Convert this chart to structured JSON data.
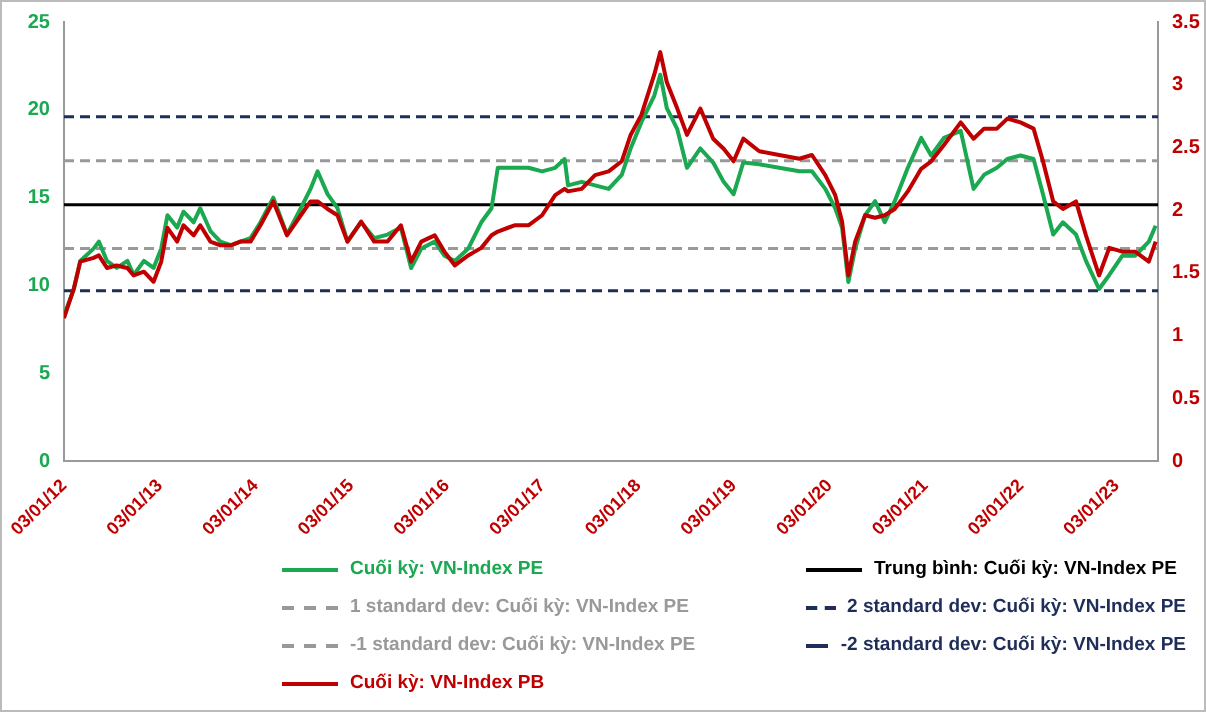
{
  "chart_data": {
    "type": "line",
    "legend": "bottom",
    "grid": false,
    "marker": "none",
    "xlim": [
      "2012-01-03",
      "2023-06-10"
    ],
    "xticks": [
      {
        "value": "2012-01-03",
        "label": "03/01/12"
      },
      {
        "value": "2013-01-03",
        "label": "03/01/13"
      },
      {
        "value": "2014-01-03",
        "label": "03/01/14"
      },
      {
        "value": "2015-01-03",
        "label": "03/01/15"
      },
      {
        "value": "2016-01-03",
        "label": "03/01/16"
      },
      {
        "value": "2017-01-03",
        "label": "03/01/17"
      },
      {
        "value": "2018-01-03",
        "label": "03/01/18"
      },
      {
        "value": "2019-01-03",
        "label": "03/01/19"
      },
      {
        "value": "2020-01-03",
        "label": "03/01/20"
      },
      {
        "value": "2021-01-03",
        "label": "03/01/21"
      },
      {
        "value": "2022-01-03",
        "label": "03/01/22"
      },
      {
        "value": "2023-01-03",
        "label": "03/01/23"
      }
    ],
    "ylim": [
      0,
      25
    ],
    "yticks": [
      0,
      5,
      10,
      15,
      20,
      25
    ],
    "y2lim": [
      0,
      3.5
    ],
    "y2ticks": [
      0,
      0.5,
      1,
      1.5,
      2,
      2.5,
      3,
      3.5
    ],
    "x": [
      "2012-01-03",
      "2012-02-10",
      "2012-03-05",
      "2012-04-25",
      "2012-05-15",
      "2012-06-15",
      "2012-07-22",
      "2012-09-01",
      "2012-09-25",
      "2012-11-03",
      "2012-12-10",
      "2013-01-08",
      "2013-02-01",
      "2013-03-10",
      "2013-04-03",
      "2013-05-12",
      "2013-06-06",
      "2013-07-15",
      "2013-08-22",
      "2013-10-01",
      "2013-11-06",
      "2013-12-15",
      "2014-01-22",
      "2014-03-12",
      "2014-05-03",
      "2014-06-25",
      "2014-08-01",
      "2014-08-28",
      "2014-10-05",
      "2014-11-12",
      "2014-12-20",
      "2015-02-10",
      "2015-04-01",
      "2015-05-22",
      "2015-07-12",
      "2015-08-20",
      "2015-09-28",
      "2015-11-18",
      "2015-12-25",
      "2016-02-03",
      "2016-03-25",
      "2016-05-14",
      "2016-06-22",
      "2016-07-16",
      "2016-09-18",
      "2016-11-10",
      "2017-01-01",
      "2017-02-20",
      "2017-03-28",
      "2017-04-10",
      "2017-06-01",
      "2017-07-22",
      "2017-09-12",
      "2017-11-01",
      "2017-12-05",
      "2018-01-15",
      "2018-03-05",
      "2018-03-28",
      "2018-04-22",
      "2018-06-01",
      "2018-07-08",
      "2018-08-28",
      "2018-10-16",
      "2018-11-25",
      "2019-01-02",
      "2019-02-08",
      "2019-04-10",
      "2019-06-25",
      "2019-09-10",
      "2019-10-28",
      "2019-12-18",
      "2020-01-25",
      "2020-02-20",
      "2020-03-15",
      "2020-04-10",
      "2020-05-18",
      "2020-06-25",
      "2020-08-01",
      "2020-09-08",
      "2020-10-28",
      "2020-12-18",
      "2021-01-25",
      "2021-03-15",
      "2021-05-18",
      "2021-07-06",
      "2021-08-15",
      "2021-10-03",
      "2021-11-12",
      "2022-01-01",
      "2022-02-20",
      "2022-03-28",
      "2022-05-06",
      "2022-06-12",
      "2022-08-01",
      "2022-09-08",
      "2022-10-28",
      "2022-12-06",
      "2023-01-25",
      "2023-03-15",
      "2023-05-06",
      "2023-06-01"
    ],
    "series": [
      {
        "name": "Cuối kỳ: VN-Index PE",
        "color": "#1aa850",
        "values": [
          8.3,
          9.8,
          11.4,
          12.1,
          12.5,
          11.4,
          11.0,
          11.4,
          10.6,
          11.4,
          11.0,
          12.1,
          14.0,
          13.3,
          14.2,
          13.6,
          14.4,
          13.1,
          12.5,
          12.3,
          12.5,
          12.7,
          13.6,
          15.0,
          12.9,
          14.4,
          15.5,
          16.5,
          15.2,
          14.4,
          12.5,
          13.6,
          12.7,
          12.9,
          13.3,
          11.0,
          12.1,
          12.5,
          11.7,
          11.4,
          12.1,
          13.6,
          14.4,
          16.7,
          16.7,
          16.7,
          16.5,
          16.7,
          17.2,
          15.7,
          15.9,
          15.7,
          15.5,
          16.3,
          17.8,
          19.3,
          20.8,
          22.0,
          20.1,
          18.9,
          16.7,
          17.8,
          17.0,
          15.9,
          15.2,
          17.0,
          16.9,
          16.7,
          16.5,
          16.5,
          15.5,
          14.4,
          13.3,
          10.2,
          12.1,
          14.0,
          14.8,
          13.6,
          14.8,
          16.7,
          18.4,
          17.4,
          18.4,
          18.8,
          15.5,
          16.3,
          16.7,
          17.2,
          17.4,
          17.2,
          15.2,
          12.9,
          13.6,
          12.9,
          11.4,
          9.8,
          10.6,
          11.7,
          11.7,
          12.5,
          13.4
        ]
      },
      {
        "name": "1 standard dev: Cuối kỳ: VN-Index PE",
        "color": "#999999",
        "line_style": "dashed",
        "x": [
          "2012-01-03",
          "2023-06-10"
        ],
        "values": [
          17.1,
          17.1
        ]
      },
      {
        "name": "-1 standard dev: Cuối kỳ: VN-Index PE",
        "color": "#999999",
        "line_style": "dashed",
        "x": [
          "2012-01-03",
          "2023-06-10"
        ],
        "values": [
          12.1,
          12.1
        ]
      },
      {
        "name": "Cuối kỳ: VN-Index PB",
        "color": "#c00000",
        "axis": "y2",
        "values": [
          1.14,
          1.38,
          1.59,
          1.62,
          1.64,
          1.54,
          1.56,
          1.54,
          1.48,
          1.51,
          1.43,
          1.59,
          1.86,
          1.75,
          1.88,
          1.8,
          1.88,
          1.75,
          1.72,
          1.72,
          1.75,
          1.75,
          1.88,
          2.07,
          1.8,
          1.96,
          2.07,
          2.07,
          2.01,
          1.96,
          1.75,
          1.91,
          1.75,
          1.75,
          1.88,
          1.59,
          1.75,
          1.8,
          1.67,
          1.56,
          1.64,
          1.7,
          1.8,
          1.83,
          1.88,
          1.88,
          1.96,
          2.12,
          2.17,
          2.15,
          2.17,
          2.28,
          2.31,
          2.39,
          2.6,
          2.76,
          3.08,
          3.26,
          3.02,
          2.81,
          2.6,
          2.81,
          2.57,
          2.49,
          2.39,
          2.57,
          2.47,
          2.44,
          2.41,
          2.44,
          2.28,
          2.12,
          1.91,
          1.48,
          1.75,
          1.96,
          1.94,
          1.96,
          2.01,
          2.15,
          2.33,
          2.39,
          2.52,
          2.7,
          2.57,
          2.65,
          2.65,
          2.73,
          2.7,
          2.65,
          2.39,
          2.07,
          2.01,
          2.07,
          1.8,
          1.48,
          1.7,
          1.67,
          1.67,
          1.59,
          1.75
        ]
      },
      {
        "name": "Trung bình: Cuối kỳ: VN-Index PE",
        "color": "#000000",
        "x": [
          "2012-01-03",
          "2023-06-10"
        ],
        "values": [
          14.6,
          14.6
        ]
      },
      {
        "name": "2 standard dev: Cuối kỳ: VN-Index PE",
        "color": "#1f2d5a",
        "line_style": "dashed",
        "x": [
          "2012-01-03",
          "2023-06-10"
        ],
        "values": [
          19.6,
          19.6
        ]
      },
      {
        "name": "-2 standard dev: Cuối kỳ: VN-Index PE",
        "color": "#1f2d5a",
        "line_style": "dashed",
        "x": [
          "2012-01-03",
          "2023-06-10"
        ],
        "values": [
          9.7,
          9.7
        ]
      }
    ]
  }
}
